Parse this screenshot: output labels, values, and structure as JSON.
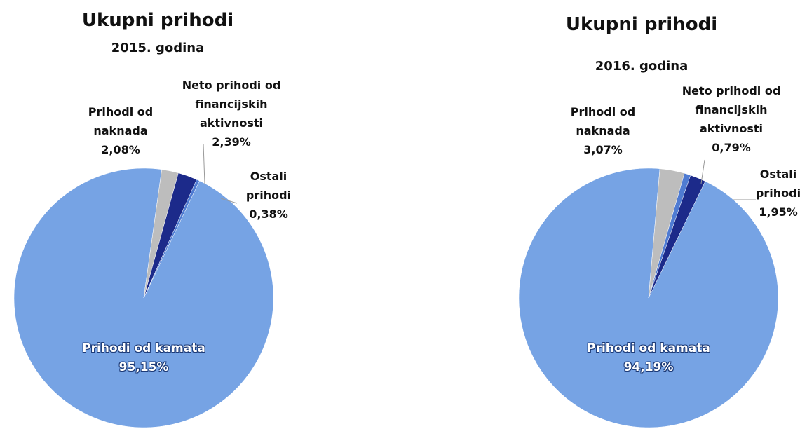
{
  "chart_data": [
    {
      "type": "pie",
      "title": "Ukupni prihodi",
      "subtitle": "2015. godina",
      "categories": [
        "Prihodi od kamata",
        "Prihodi od naknada",
        "Neto prihodi od financijskih aktivnosti",
        "Ostali prihodi"
      ],
      "values": [
        95.15,
        2.08,
        2.39,
        0.38
      ],
      "value_labels": [
        "95,15%",
        "2,08%",
        "2,39%",
        "0,38%"
      ],
      "colors": [
        "#76a3e4",
        "#bdbdbd",
        "#1c2a8a",
        "#4f7bd2"
      ]
    },
    {
      "type": "pie",
      "title": "Ukupni prihodi",
      "subtitle": "2016. godina",
      "categories": [
        "Prihodi od kamata",
        "Prihodi od naknada",
        "Neto prihodi od financijskih aktivnosti",
        "Ostali prihodi"
      ],
      "values": [
        94.19,
        3.07,
        0.79,
        1.95
      ],
      "value_labels": [
        "94,19%",
        "3,07%",
        "0,79%",
        "1,95%"
      ],
      "colors": [
        "#76a3e4",
        "#bdbdbd",
        "#4f7bd2",
        "#1c2a8a"
      ]
    }
  ]
}
